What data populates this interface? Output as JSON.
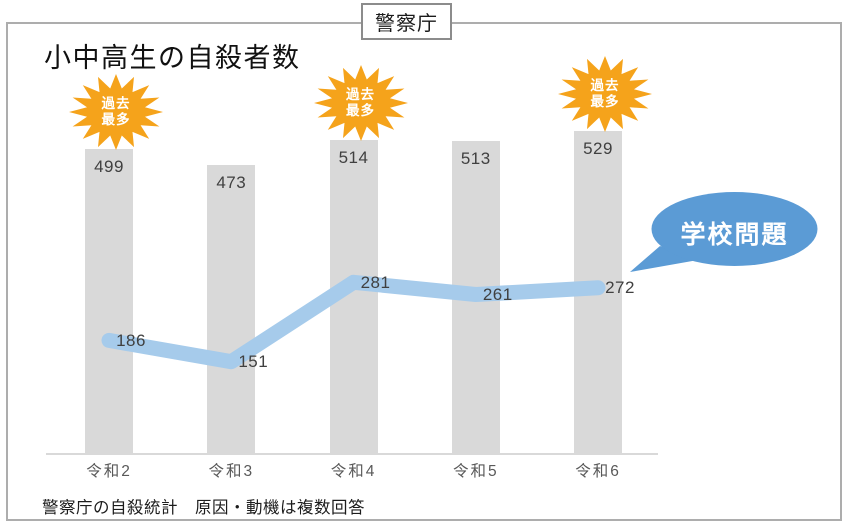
{
  "window": {
    "agency_label": "警察庁"
  },
  "chart": {
    "title": "小中高生の自殺者数"
  },
  "badge": {
    "line1": "過去",
    "line2": "最多",
    "full": "過去最多"
  },
  "callout": {
    "label": "学校問題"
  },
  "footnote": "警察庁の自殺統計　原因・動機は複数回答",
  "colors": {
    "bar": "#d9d9d9",
    "line": "#a6cbeb",
    "callout": "#5b9bd5",
    "badge": "#f5a31b",
    "axis": "#d9d9d9",
    "bar_label": "#404040",
    "tick_label": "#595959"
  },
  "chart_data": {
    "type": "bar+line",
    "title": "小中高生の自殺者数",
    "categories": [
      "令和2",
      "令和3",
      "令和4",
      "令和5",
      "令和6"
    ],
    "series": [
      {
        "name": "小中高生の自殺者数",
        "type": "bar",
        "values": [
          499,
          473,
          514,
          513,
          529
        ]
      },
      {
        "name": "学校問題",
        "type": "line",
        "values": [
          186,
          151,
          281,
          261,
          272
        ]
      }
    ],
    "record_high": [
      true,
      false,
      true,
      false,
      true
    ],
    "record_high_badge": "過去最多",
    "source": "警察庁の自殺統計",
    "note": "原因・動機は複数回答",
    "ylim": [
      0,
      545
    ],
    "grid": false,
    "legend": "none"
  }
}
